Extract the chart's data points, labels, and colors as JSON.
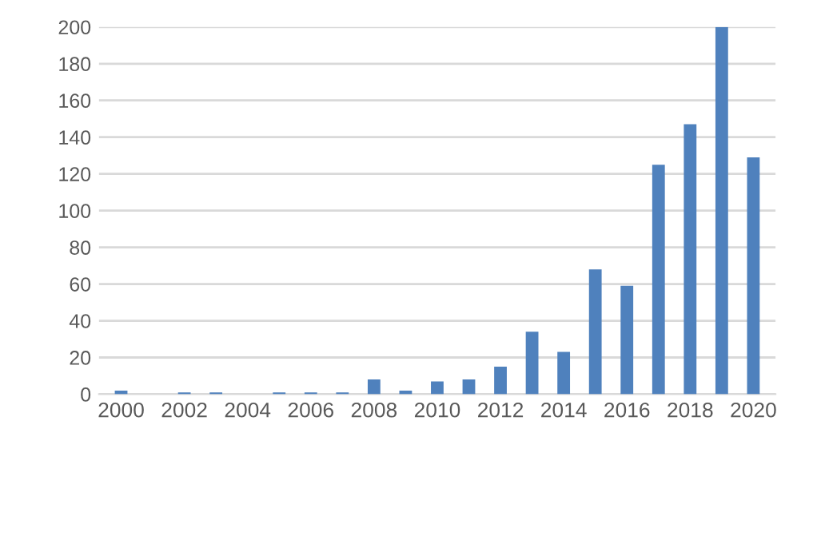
{
  "chart_data": {
    "type": "bar",
    "categories": [
      "2000",
      null,
      "2002",
      null,
      "2004",
      null,
      "2006",
      null,
      "2008",
      null,
      "2010",
      null,
      "2012",
      null,
      "2014",
      null,
      "2016",
      null,
      "2018",
      null,
      "2020"
    ],
    "values": [
      2,
      null,
      1,
      1,
      null,
      1,
      1,
      1,
      8,
      2,
      7,
      8,
      15,
      34,
      23,
      68,
      59,
      125,
      147,
      200,
      129
    ],
    "color": "#4f81bd",
    "ylim": [
      0,
      200
    ],
    "yticks": [
      0,
      20,
      40,
      60,
      80,
      100,
      120,
      140,
      160,
      180,
      200
    ],
    "grid": "y",
    "legend": false
  }
}
